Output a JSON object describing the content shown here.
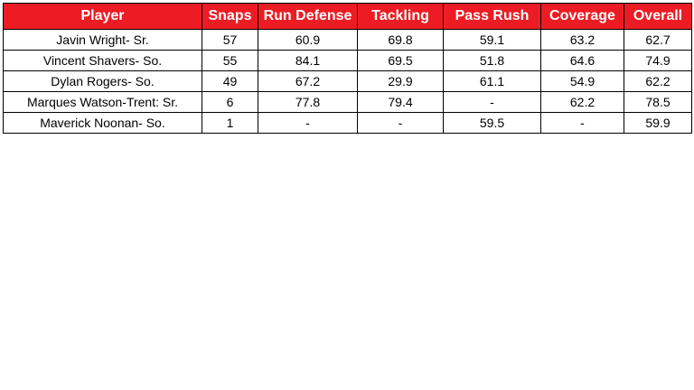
{
  "table": {
    "header_bg": "#ED1C24",
    "header_text_color": "#FFFFFF",
    "columns": [
      "Player",
      "Snaps",
      "Run Defense",
      "Tackling",
      "Pass Rush",
      "Coverage",
      "Overall"
    ],
    "rows": [
      [
        "Javin Wright- Sr.",
        "57",
        "60.9",
        "69.8",
        "59.1",
        "63.2",
        "62.7"
      ],
      [
        "Vincent Shavers- So.",
        "55",
        "84.1",
        "69.5",
        "51.8",
        "64.6",
        "74.9"
      ],
      [
        "Dylan Rogers- So.",
        "49",
        "67.2",
        "29.9",
        "61.1",
        "54.9",
        "62.2"
      ],
      [
        "Marques Watson-Trent: Sr.",
        "6",
        "77.8",
        "79.4",
        "-",
        "62.2",
        "78.5"
      ],
      [
        "Maverick Noonan- So.",
        "1",
        "-",
        "-",
        "59.5",
        "-",
        "59.9"
      ]
    ]
  },
  "chart_data": {
    "type": "table",
    "title": "",
    "columns": [
      "Player",
      "Snaps",
      "Run Defense",
      "Tackling",
      "Pass Rush",
      "Coverage",
      "Overall"
    ],
    "rows": [
      {
        "player": "Javin Wright- Sr.",
        "snaps": 57,
        "run_defense": 60.9,
        "tackling": 69.8,
        "pass_rush": 59.1,
        "coverage": 63.2,
        "overall": 62.7
      },
      {
        "player": "Vincent Shavers- So.",
        "snaps": 55,
        "run_defense": 84.1,
        "tackling": 69.5,
        "pass_rush": 51.8,
        "coverage": 64.6,
        "overall": 74.9
      },
      {
        "player": "Dylan Rogers- So.",
        "snaps": 49,
        "run_defense": 67.2,
        "tackling": 29.9,
        "pass_rush": 61.1,
        "coverage": 54.9,
        "overall": 62.2
      },
      {
        "player": "Marques Watson-Trent: Sr.",
        "snaps": 6,
        "run_defense": 77.8,
        "tackling": 79.4,
        "pass_rush": null,
        "coverage": 62.2,
        "overall": 78.5
      },
      {
        "player": "Maverick Noonan- So.",
        "snaps": 1,
        "run_defense": null,
        "tackling": null,
        "pass_rush": 59.5,
        "coverage": null,
        "overall": 59.9
      }
    ],
    "missing_value_display": "-",
    "header_bg": "#ED1C24"
  }
}
